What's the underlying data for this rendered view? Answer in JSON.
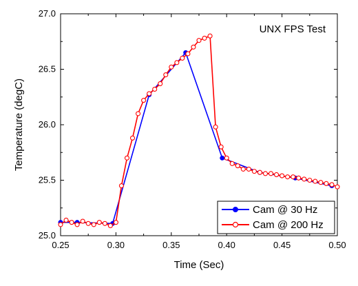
{
  "chart_data": {
    "type": "line",
    "title": "UNX FPS Test",
    "xlabel": "Time (Sec)",
    "ylabel": "Temperature (degC)",
    "xlim": [
      0.25,
      0.5
    ],
    "ylim": [
      25.0,
      27.0
    ],
    "x_ticks": [
      "0.25",
      "0.30",
      "0.35",
      "0.40",
      "0.45",
      "0.50"
    ],
    "y_ticks": [
      "25.0",
      "25.5",
      "26.0",
      "26.5",
      "27.0"
    ],
    "grid": false,
    "legend_position": "bottom-right",
    "series": [
      {
        "name": "Cam @ 30 Hz",
        "color": "#0000ff",
        "marker": "filled-circle",
        "x": [
          0.25,
          0.265,
          0.297,
          0.33,
          0.363,
          0.396,
          0.43,
          0.462,
          0.495
        ],
        "y": [
          25.12,
          25.12,
          25.11,
          26.27,
          26.65,
          25.7,
          25.57,
          25.52,
          25.45
        ]
      },
      {
        "name": "Cam @ 200 Hz",
        "color": "#ff0000",
        "marker": "open-circle",
        "x": [
          0.25,
          0.255,
          0.26,
          0.265,
          0.27,
          0.275,
          0.28,
          0.285,
          0.29,
          0.295,
          0.3,
          0.305,
          0.31,
          0.315,
          0.32,
          0.325,
          0.33,
          0.335,
          0.34,
          0.345,
          0.35,
          0.355,
          0.36,
          0.365,
          0.37,
          0.375,
          0.38,
          0.385,
          0.39,
          0.395,
          0.4,
          0.405,
          0.41,
          0.415,
          0.42,
          0.425,
          0.43,
          0.435,
          0.44,
          0.445,
          0.45,
          0.455,
          0.46,
          0.465,
          0.47,
          0.475,
          0.48,
          0.485,
          0.49,
          0.495,
          0.5
        ],
        "y": [
          25.1,
          25.14,
          25.12,
          25.1,
          25.13,
          25.11,
          25.1,
          25.12,
          25.11,
          25.09,
          25.12,
          25.45,
          25.7,
          25.88,
          26.1,
          26.22,
          26.28,
          26.32,
          26.37,
          26.45,
          26.52,
          26.56,
          26.6,
          26.64,
          26.7,
          26.76,
          26.78,
          26.8,
          25.98,
          25.8,
          25.7,
          25.65,
          25.63,
          25.6,
          25.6,
          25.58,
          25.57,
          25.56,
          25.56,
          25.55,
          25.54,
          25.53,
          25.53,
          25.52,
          25.51,
          25.5,
          25.49,
          25.48,
          25.47,
          25.46,
          25.44
        ]
      }
    ]
  }
}
